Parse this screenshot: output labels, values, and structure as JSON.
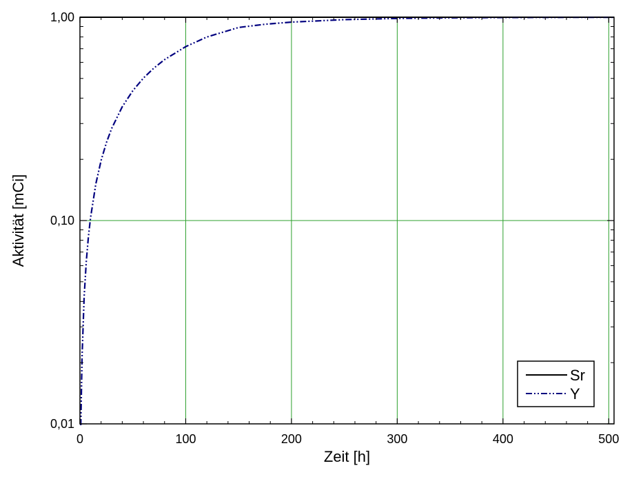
{
  "chart_data": {
    "type": "line",
    "xlabel": "Zeit [h]",
    "ylabel": "Aktivität [mCi]",
    "xlim": [
      0,
      505
    ],
    "ylim": [
      0.01,
      1.0
    ],
    "yscale": "log",
    "grid": true,
    "grid_color": "#2ca02c",
    "legend_position": "bottom-right",
    "x_ticks": [
      0,
      100,
      200,
      300,
      400,
      500
    ],
    "x_tick_labels": [
      "0",
      "100",
      "200",
      "300",
      "400",
      "500"
    ],
    "y_ticks": [
      0.01,
      0.1,
      1.0
    ],
    "y_tick_labels": [
      "0,01",
      "0,10",
      "1,00"
    ],
    "series": [
      {
        "name": "Sr",
        "color": "#000000",
        "style": "solid",
        "x": [
          0,
          100,
          200,
          300,
          400,
          505
        ],
        "y": [
          1.0,
          1.0,
          1.0,
          1.0,
          1.0,
          1.0
        ]
      },
      {
        "name": "Y",
        "color": "#00007f",
        "style": "dash-dot-dot",
        "x": [
          0.8,
          2,
          4,
          6,
          8,
          10,
          15,
          20,
          25,
          30,
          40,
          50,
          60,
          70,
          80,
          100,
          120,
          150,
          175,
          200,
          250,
          300,
          350,
          400,
          450,
          505
        ],
        "y": [
          0.0086,
          0.0214,
          0.0424,
          0.063,
          0.0832,
          0.1031,
          0.1513,
          0.1974,
          0.2415,
          0.2838,
          0.3628,
          0.4353,
          0.5018,
          0.5628,
          0.6187,
          0.7168,
          0.7993,
          0.8905,
          0.9236,
          0.9463,
          0.9731,
          0.9866,
          0.9933,
          0.9966,
          0.9983,
          0.9992
        ]
      }
    ]
  }
}
